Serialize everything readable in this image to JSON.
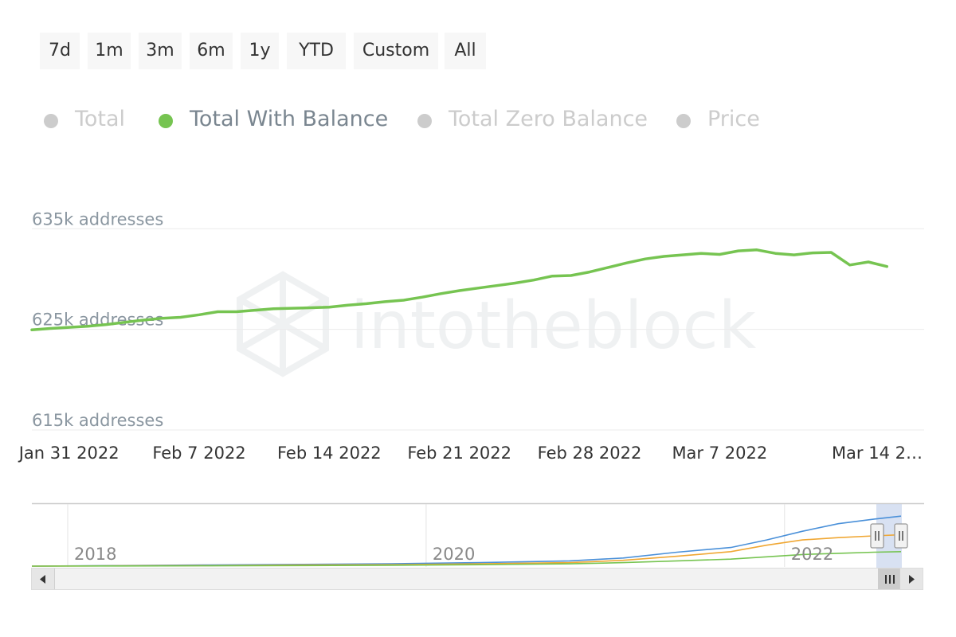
{
  "range_selector": {
    "buttons": [
      "7d",
      "1m",
      "3m",
      "6m",
      "1y",
      "YTD",
      "Custom",
      "All"
    ]
  },
  "legend": {
    "items": [
      {
        "label": "Total",
        "color": "#cccccc",
        "active": false
      },
      {
        "label": "Total With Balance",
        "color": "#76c451",
        "active": true
      },
      {
        "label": "Total Zero Balance",
        "color": "#cccccc",
        "active": false
      },
      {
        "label": "Price",
        "color": "#cccccc",
        "active": false
      }
    ]
  },
  "watermark": "intotheblock",
  "chart_data": [
    {
      "type": "line",
      "title": "",
      "ylabel": "",
      "ylim": [
        615000,
        637000
      ],
      "y_ticks": [
        {
          "value": 615000,
          "label": "615k addresses"
        },
        {
          "value": 625000,
          "label": "625k addresses"
        },
        {
          "value": 635000,
          "label": "635k addresses"
        }
      ],
      "x_ticks": [
        "Jan 31 2022",
        "Feb 7 2022",
        "Feb 14 2022",
        "Feb 21 2022",
        "Feb 28 2022",
        "Mar 7 2022",
        "Mar 14 2…"
      ],
      "x_range": [
        "2022-01-29",
        "2022-03-18"
      ],
      "grid": true,
      "series": [
        {
          "name": "Total With Balance",
          "color": "#76c451",
          "points": [
            [
              "2022-01-29",
              624950
            ],
            [
              "2022-01-30",
              625090
            ],
            [
              "2022-01-31",
              625200
            ],
            [
              "2022-02-01",
              625300
            ],
            [
              "2022-02-02",
              625480
            ],
            [
              "2022-02-03",
              625700
            ],
            [
              "2022-02-04",
              625920
            ],
            [
              "2022-02-05",
              626100
            ],
            [
              "2022-02-06",
              626200
            ],
            [
              "2022-02-07",
              626450
            ],
            [
              "2022-02-08",
              626750
            ],
            [
              "2022-02-09",
              626750
            ],
            [
              "2022-02-10",
              626900
            ],
            [
              "2022-02-11",
              627050
            ],
            [
              "2022-02-12",
              627100
            ],
            [
              "2022-02-13",
              627150
            ],
            [
              "2022-02-14",
              627200
            ],
            [
              "2022-02-15",
              627400
            ],
            [
              "2022-02-16",
              627550
            ],
            [
              "2022-02-17",
              627750
            ],
            [
              "2022-02-18",
              627900
            ],
            [
              "2022-02-19",
              628200
            ],
            [
              "2022-02-20",
              628550
            ],
            [
              "2022-02-21",
              628850
            ],
            [
              "2022-02-22",
              629100
            ],
            [
              "2022-02-23",
              629350
            ],
            [
              "2022-02-24",
              629600
            ],
            [
              "2022-02-25",
              629900
            ],
            [
              "2022-02-26",
              630300
            ],
            [
              "2022-02-27",
              630350
            ],
            [
              "2022-02-28",
              630700
            ],
            [
              "2022-03-01",
              631150
            ],
            [
              "2022-03-02",
              631600
            ],
            [
              "2022-03-03",
              632000
            ],
            [
              "2022-03-04",
              632250
            ],
            [
              "2022-03-05",
              632400
            ],
            [
              "2022-03-06",
              632550
            ],
            [
              "2022-03-07",
              632450
            ],
            [
              "2022-03-08",
              632800
            ],
            [
              "2022-03-09",
              632900
            ],
            [
              "2022-03-10",
              632550
            ],
            [
              "2022-03-11",
              632400
            ],
            [
              "2022-03-12",
              632600
            ],
            [
              "2022-03-13",
              632650
            ],
            [
              "2022-03-14",
              631400
            ],
            [
              "2022-03-15",
              631700
            ],
            [
              "2022-03-16",
              631250
            ]
          ]
        }
      ]
    },
    {
      "type": "line",
      "title": "",
      "x_ticks": [
        "2018",
        "2020",
        "2022"
      ],
      "x_range": [
        2017.0,
        2021.85
      ],
      "series": [
        {
          "color": "#4a90d9",
          "points": [
            [
              2017.0,
              0
            ],
            [
              2017.5,
              0.01
            ],
            [
              2018.0,
              0.02
            ],
            [
              2018.5,
              0.03
            ],
            [
              2019.0,
              0.04
            ],
            [
              2019.5,
              0.06
            ],
            [
              2020.0,
              0.09
            ],
            [
              2020.3,
              0.14
            ],
            [
              2020.6,
              0.24
            ],
            [
              2020.9,
              0.32
            ],
            [
              2021.1,
              0.45
            ],
            [
              2021.3,
              0.6
            ],
            [
              2021.5,
              0.73
            ],
            [
              2021.7,
              0.81
            ],
            [
              2021.85,
              0.86
            ]
          ]
        },
        {
          "color": "#f0a733",
          "points": [
            [
              2017.0,
              0
            ],
            [
              2017.5,
              0.005
            ],
            [
              2018.0,
              0.01
            ],
            [
              2018.5,
              0.02
            ],
            [
              2019.0,
              0.025
            ],
            [
              2019.5,
              0.04
            ],
            [
              2020.0,
              0.06
            ],
            [
              2020.3,
              0.1
            ],
            [
              2020.6,
              0.17
            ],
            [
              2020.9,
              0.25
            ],
            [
              2021.1,
              0.36
            ],
            [
              2021.3,
              0.45
            ],
            [
              2021.5,
              0.49
            ],
            [
              2021.7,
              0.52
            ],
            [
              2021.85,
              0.54
            ]
          ]
        },
        {
          "color": "#76c451",
          "points": [
            [
              2017.0,
              0
            ],
            [
              2017.5,
              0.003
            ],
            [
              2018.0,
              0.006
            ],
            [
              2018.5,
              0.01
            ],
            [
              2019.0,
              0.015
            ],
            [
              2019.5,
              0.025
            ],
            [
              2020.0,
              0.04
            ],
            [
              2020.3,
              0.06
            ],
            [
              2020.6,
              0.09
            ],
            [
              2020.9,
              0.12
            ],
            [
              2021.1,
              0.16
            ],
            [
              2021.3,
              0.2
            ],
            [
              2021.5,
              0.22
            ],
            [
              2021.7,
              0.24
            ],
            [
              2021.85,
              0.25
            ]
          ]
        }
      ]
    }
  ]
}
